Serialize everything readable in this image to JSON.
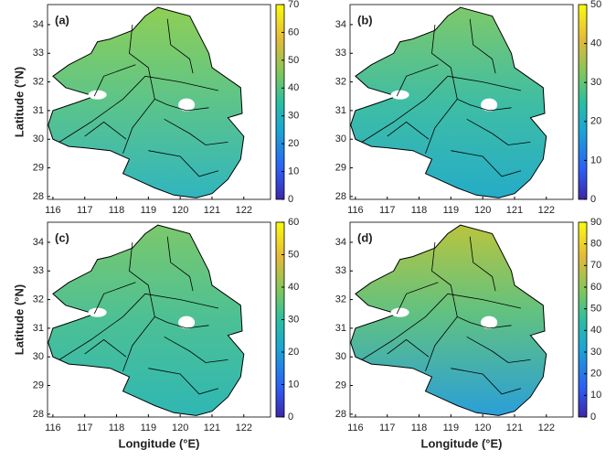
{
  "axes": {
    "xlim": [
      115.83,
      122.84
    ],
    "ylim": [
      27.9,
      34.7
    ],
    "xticks": [
      116,
      117,
      118,
      119,
      120,
      121,
      122
    ],
    "yticks": [
      28,
      29,
      30,
      31,
      32,
      33,
      34
    ],
    "xlabel": "Longitude (°E)",
    "ylabel": "Latitude (°N)"
  },
  "panels": [
    {
      "label": "(a)",
      "colorbar": {
        "lim": [
          0,
          70
        ],
        "ticks": [
          0,
          10,
          20,
          30,
          40,
          50,
          60,
          70
        ]
      }
    },
    {
      "label": "(b)",
      "colorbar": {
        "lim": [
          0,
          50
        ],
        "ticks": [
          0,
          10,
          20,
          30,
          40,
          50
        ]
      }
    },
    {
      "label": "(c)",
      "colorbar": {
        "lim": [
          0,
          60
        ],
        "ticks": [
          0,
          10,
          20,
          30,
          40,
          50,
          60
        ]
      }
    },
    {
      "label": "(d)",
      "colorbar": {
        "lim": [
          0,
          90
        ],
        "ticks": [
          0,
          10,
          20,
          30,
          40,
          50,
          60,
          70,
          80,
          90
        ]
      }
    }
  ]
}
